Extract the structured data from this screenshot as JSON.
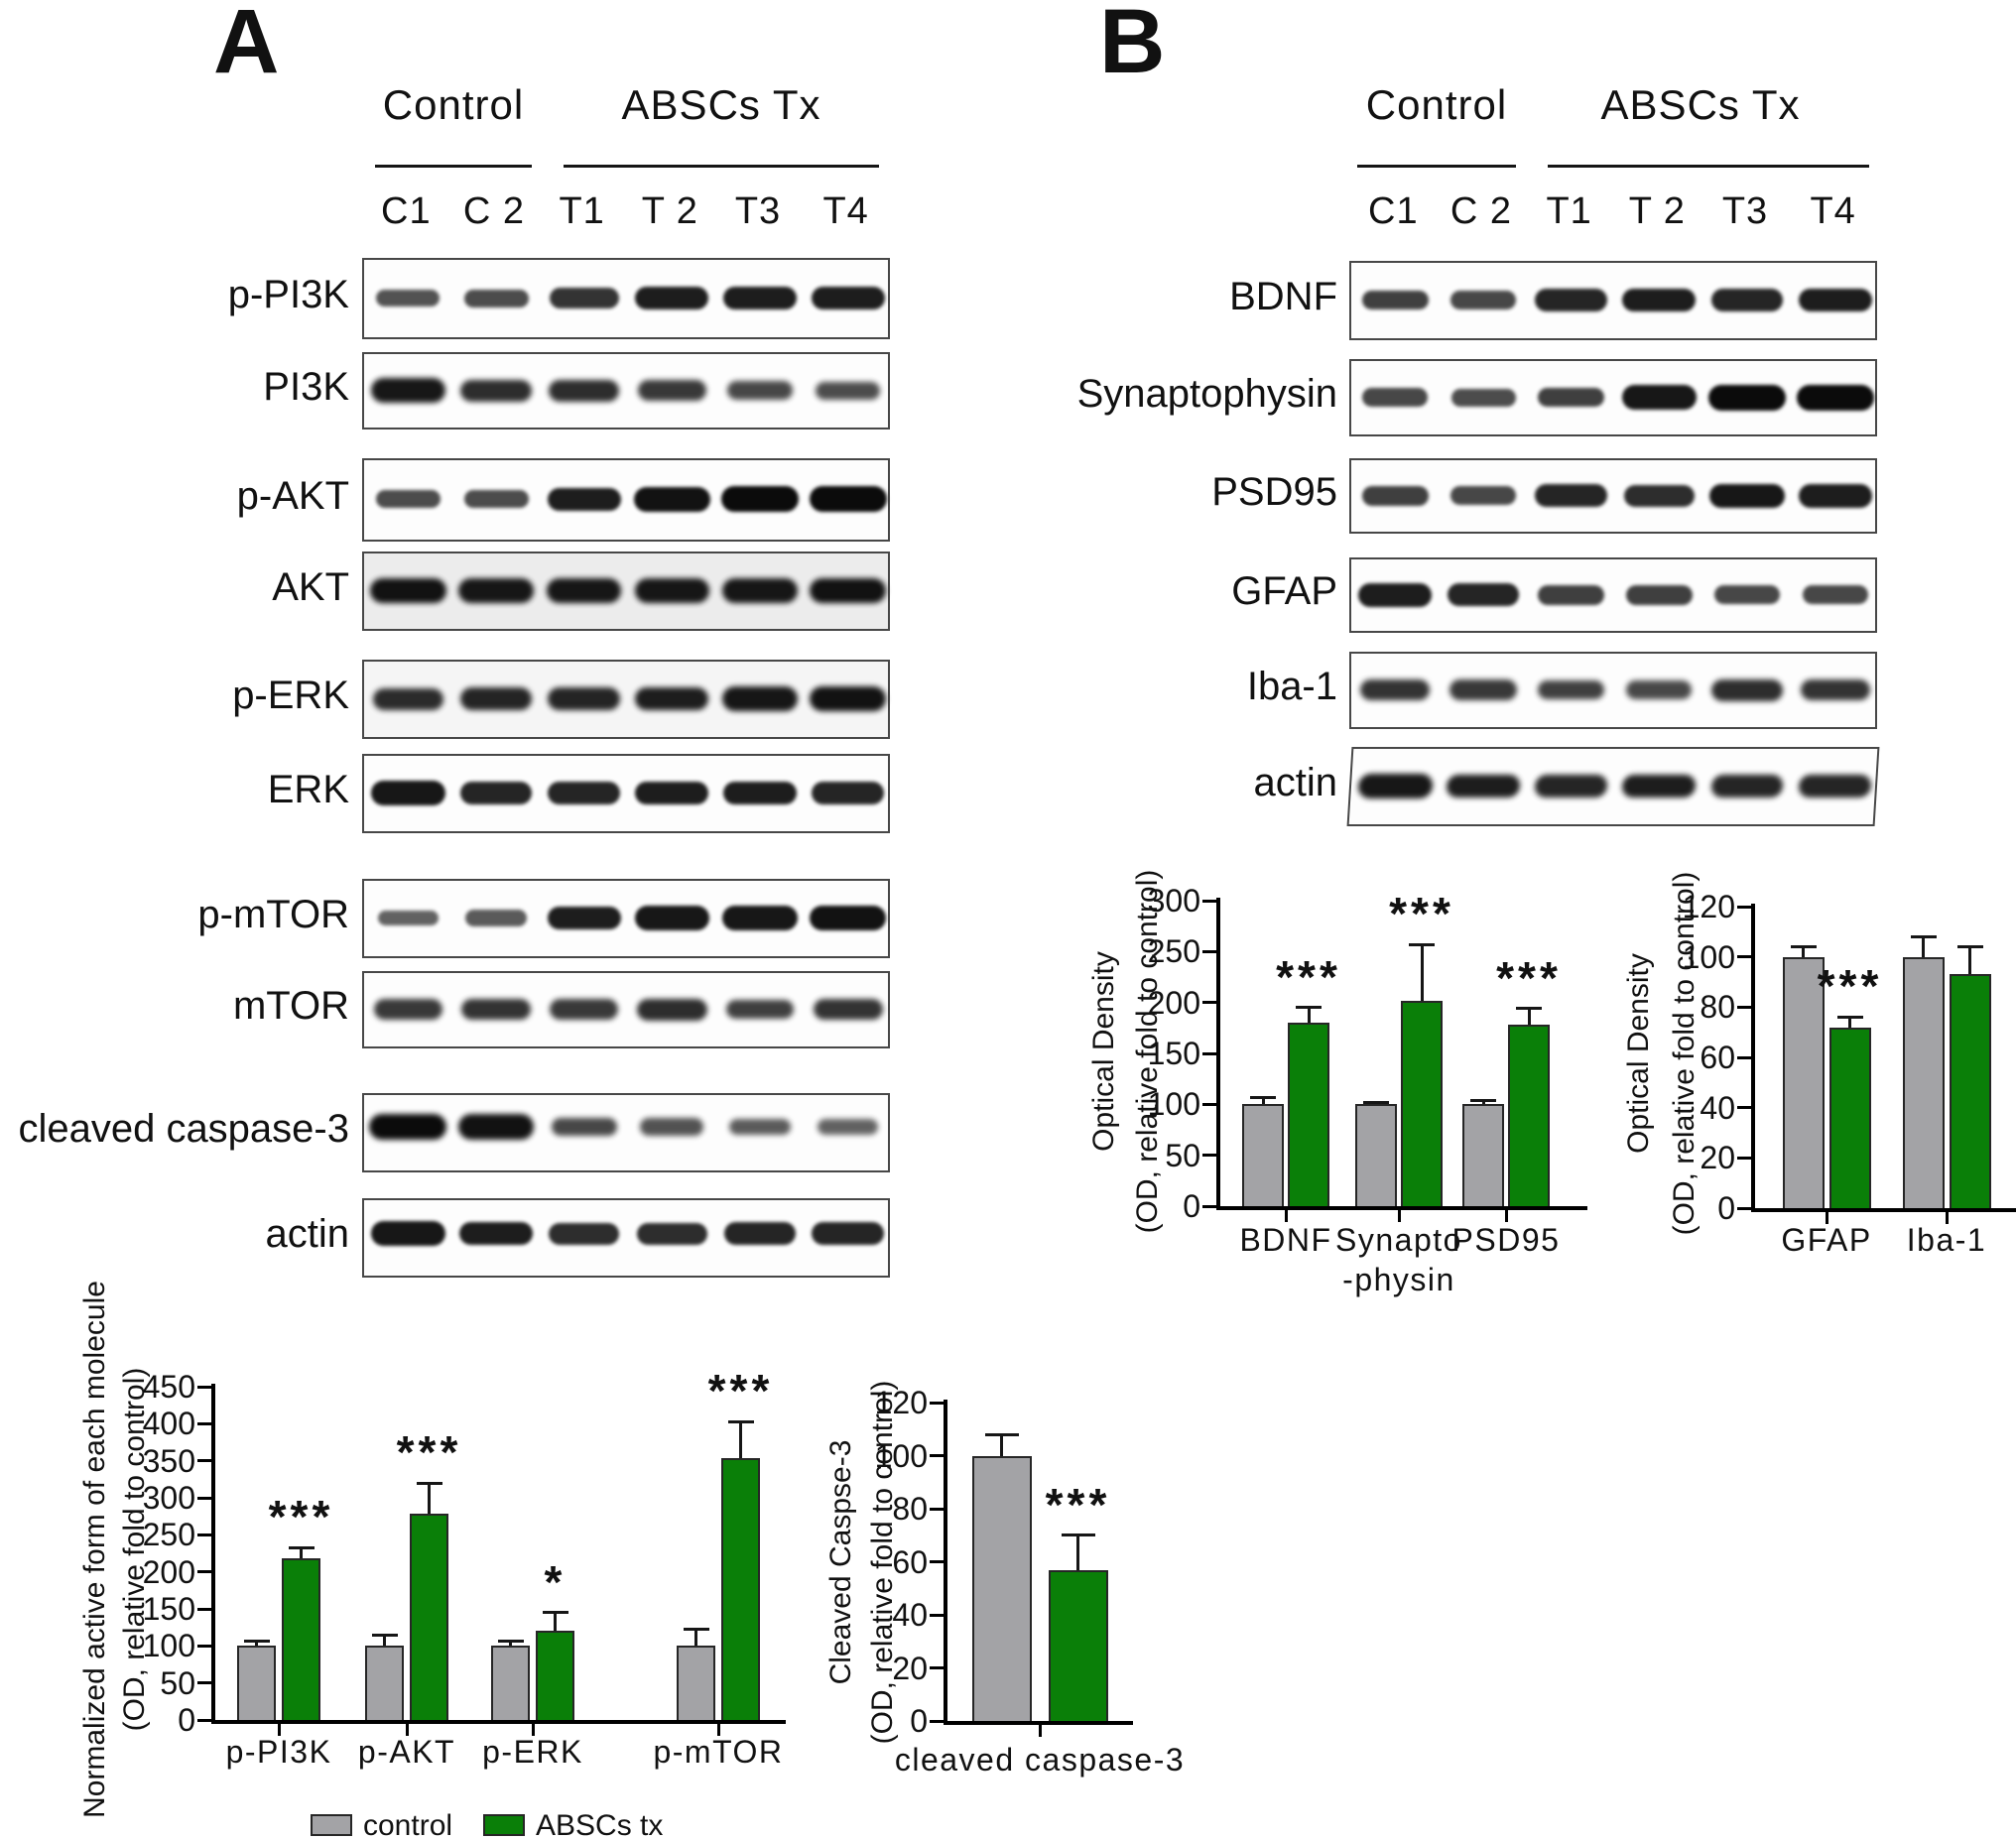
{
  "colors": {
    "control": "#a3a3a6",
    "treated": "#0a7f08",
    "band": "#0b0b0b",
    "axis": "#000000"
  },
  "legend": {
    "control": "control",
    "treated": "ABSCs tx"
  },
  "panelA": {
    "label": "A",
    "group_headers": {
      "control": "Control",
      "treated": "ABSCs Tx"
    },
    "lane_labels": [
      "C1",
      "C 2",
      "T1",
      "T 2",
      "T3",
      "T4"
    ],
    "blot_rows": [
      {
        "label": "p-PI3K",
        "bands": [
          0.45,
          0.5,
          0.7,
          0.85,
          0.85,
          0.85
        ]
      },
      {
        "label": "PI3K",
        "bands": [
          0.9,
          0.75,
          0.75,
          0.65,
          0.55,
          0.5
        ],
        "fuzzy": true
      },
      {
        "label": "p-AKT",
        "bands": [
          0.5,
          0.5,
          0.85,
          0.95,
          1.0,
          1.0
        ]
      },
      {
        "label": "AKT",
        "bands": [
          0.95,
          0.9,
          0.9,
          0.9,
          0.9,
          0.95
        ],
        "fuzzy": true,
        "wash": "#ececec"
      },
      {
        "label": "p-ERK",
        "bands": [
          0.75,
          0.8,
          0.8,
          0.85,
          0.9,
          0.95
        ],
        "fuzzy": true,
        "wash": "#f5f5f5"
      },
      {
        "label": "ERK",
        "bands": [
          0.9,
          0.8,
          0.8,
          0.85,
          0.85,
          0.8
        ]
      },
      {
        "label": "p-mTOR",
        "bands": [
          0.35,
          0.4,
          0.85,
          0.9,
          0.9,
          0.95
        ]
      },
      {
        "label": "mTOR",
        "bands": [
          0.65,
          0.7,
          0.65,
          0.75,
          0.6,
          0.7
        ],
        "fuzzy": true
      },
      {
        "label": "cleaved caspase-3",
        "bands": [
          1.0,
          0.95,
          0.55,
          0.45,
          0.4,
          0.35
        ],
        "fuzzy": true,
        "band_pos": 0.4
      },
      {
        "label": "actin",
        "bands": [
          0.9,
          0.85,
          0.75,
          0.75,
          0.8,
          0.8
        ],
        "band_pos": 0.42
      }
    ]
  },
  "panelB": {
    "label": "B",
    "group_headers": {
      "control": "Control",
      "treated": "ABSCs Tx"
    },
    "lane_labels": [
      "C1",
      "C 2",
      "T1",
      "T 2",
      "T3",
      "T4"
    ],
    "blot_rows": [
      {
        "label": "BDNF",
        "bands": [
          0.6,
          0.55,
          0.8,
          0.85,
          0.8,
          0.85
        ]
      },
      {
        "label": "Synaptophysin",
        "bands": [
          0.55,
          0.5,
          0.6,
          0.9,
          1.0,
          1.0
        ]
      },
      {
        "label": "PSD95",
        "bands": [
          0.6,
          0.55,
          0.8,
          0.75,
          0.9,
          0.85
        ]
      },
      {
        "label": "GFAP",
        "bands": [
          0.85,
          0.8,
          0.6,
          0.6,
          0.55,
          0.55
        ]
      },
      {
        "label": "Iba-1",
        "bands": [
          0.7,
          0.65,
          0.6,
          0.55,
          0.75,
          0.7
        ],
        "fuzzy": true
      },
      {
        "label": "actin",
        "bands": [
          0.9,
          0.85,
          0.8,
          0.85,
          0.8,
          0.8
        ],
        "fuzzy": true,
        "skew": true
      }
    ]
  },
  "chart_data": [
    {
      "id": "panelA-signaling",
      "type": "bar",
      "categories": [
        "p-PI3K",
        "p-AKT",
        "p-ERK",
        "p-mTOR"
      ],
      "series": [
        {
          "name": "control",
          "values": [
            100,
            100,
            100,
            100
          ],
          "errors": [
            7,
            15,
            7,
            22
          ]
        },
        {
          "name": "ABSCs tx",
          "values": [
            218,
            278,
            120,
            353
          ],
          "errors": [
            15,
            42,
            25,
            50
          ]
        }
      ],
      "significance": [
        "***",
        "***",
        "*",
        "***"
      ],
      "ylabel_line1": "Normalized active form of each molecule",
      "ylabel_line2": "(OD, relative fold to control)",
      "ylim": [
        0,
        450
      ],
      "ytick_step": 50,
      "legend_position": "bottom"
    },
    {
      "id": "panelA-caspase",
      "type": "bar",
      "categories": [
        "cleaved caspase-3"
      ],
      "series": [
        {
          "name": "control",
          "values": [
            100
          ],
          "errors": [
            8
          ]
        },
        {
          "name": "ABSCs tx",
          "values": [
            57
          ],
          "errors": [
            13
          ]
        }
      ],
      "significance": [
        "***"
      ],
      "ylabel_line1": "Cleaved Caspse-3",
      "ylabel_line2": "(OD, relative fold to control)",
      "ylim": [
        0,
        120
      ],
      "ytick_step": 20
    },
    {
      "id": "panelB-synaptic",
      "type": "bar",
      "categories": [
        "BDNF",
        "Synapto\n-physin",
        "PSD95"
      ],
      "series": [
        {
          "name": "control",
          "values": [
            100,
            100,
            100
          ],
          "errors": [
            7,
            2,
            4
          ]
        },
        {
          "name": "ABSCs tx",
          "values": [
            180,
            202,
            178
          ],
          "errors": [
            15,
            55,
            16
          ]
        }
      ],
      "significance": [
        "***",
        "***",
        "***"
      ],
      "ylabel_line1": "Optical Density",
      "ylabel_line2": "(OD, relative fold to control)",
      "ylim": [
        0,
        300
      ],
      "ytick_step": 50
    },
    {
      "id": "panelB-glial",
      "type": "bar",
      "categories": [
        "GFAP",
        "Iba-1"
      ],
      "series": [
        {
          "name": "control",
          "values": [
            100,
            100
          ],
          "errors": [
            4,
            8
          ]
        },
        {
          "name": "ABSCs tx",
          "values": [
            72,
            93
          ],
          "errors": [
            4,
            11
          ]
        }
      ],
      "significance": [
        "***",
        ""
      ],
      "ylabel_line1": "Optical Density",
      "ylabel_line2": "(OD, relative fold to control)",
      "ylim": [
        0,
        120
      ],
      "ytick_step": 20
    }
  ]
}
